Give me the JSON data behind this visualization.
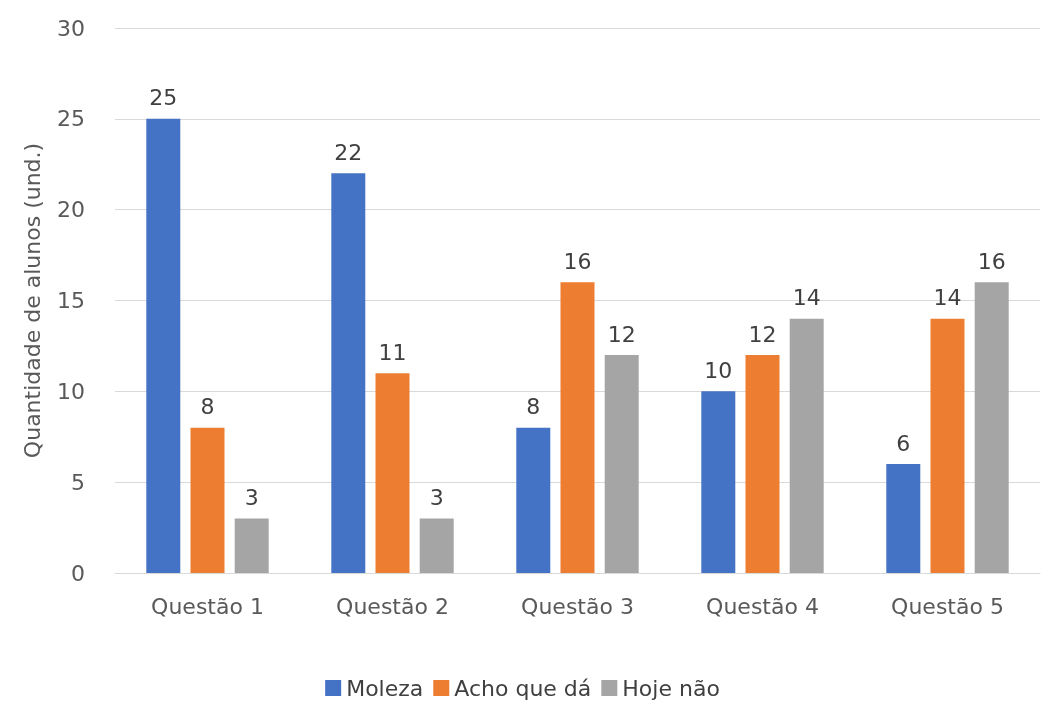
{
  "chart_data": {
    "type": "bar",
    "ylabel": "Quantidade de alunos (und.)",
    "categories": [
      "Questão 1",
      "Questão 2",
      "Questão 3",
      "Questão 4",
      "Questão 5"
    ],
    "series": [
      {
        "name": "Moleza",
        "color": "#4472c4",
        "values": [
          25,
          22,
          8,
          10,
          6
        ]
      },
      {
        "name": "Acho que dá",
        "color": "#ed7d31",
        "values": [
          8,
          11,
          16,
          12,
          14
        ]
      },
      {
        "name": "Hoje não",
        "color": "#a5a5a5",
        "values": [
          3,
          3,
          12,
          14,
          16
        ]
      }
    ],
    "ylim": [
      0,
      30
    ],
    "yticks": [
      0,
      5,
      10,
      15,
      20,
      25,
      30
    ],
    "grid": "y",
    "legend": "bottom",
    "data_labels": true
  }
}
